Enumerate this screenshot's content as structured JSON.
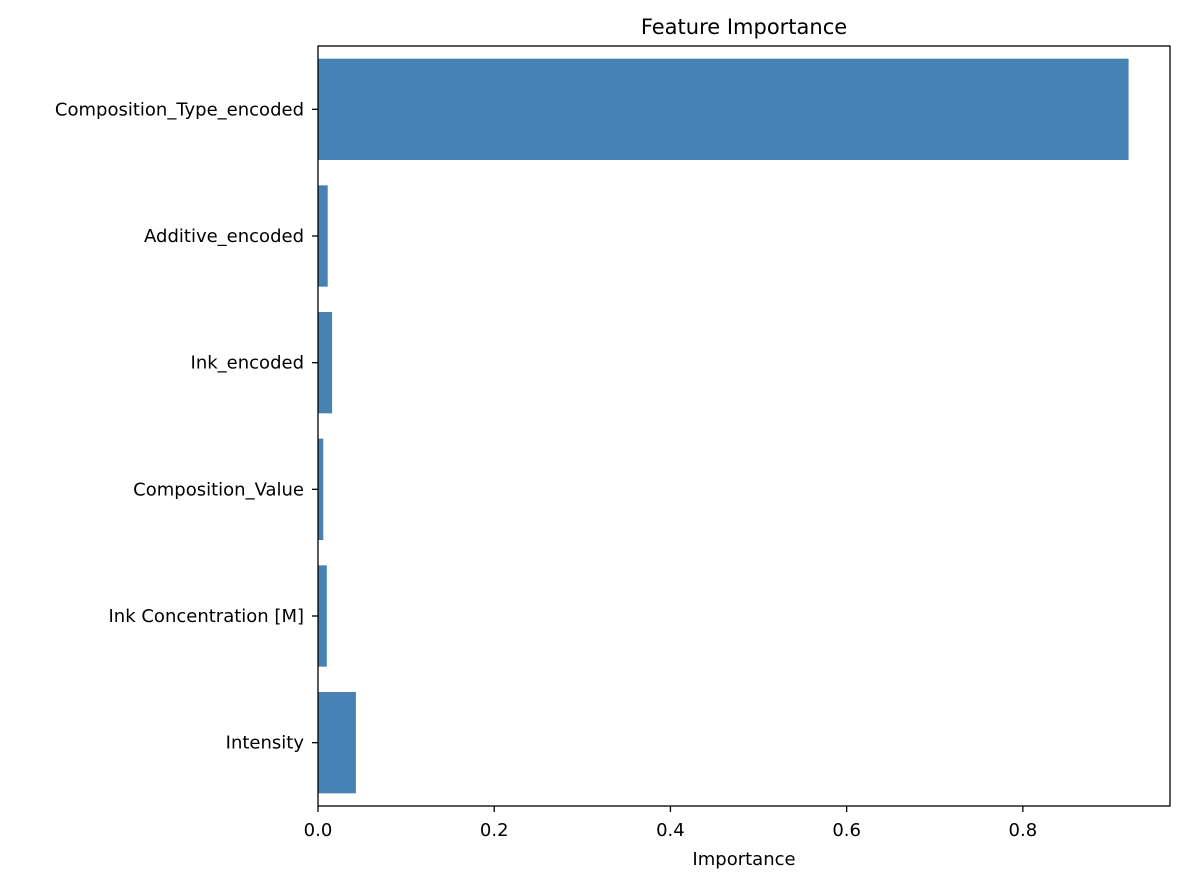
{
  "chart_data": {
    "type": "bar",
    "orientation": "horizontal",
    "title": "Feature Importance",
    "xlabel": "Importance",
    "ylabel": "",
    "categories": [
      "Composition_Type_encoded",
      "Additive_encoded",
      "Ink_encoded",
      "Composition_Value",
      "Ink Concentration [M]",
      "Intensity"
    ],
    "values": [
      0.92,
      0.011,
      0.016,
      0.006,
      0.01,
      0.043
    ],
    "xlim": [
      0,
      0.967
    ],
    "xticks": [
      0.0,
      0.2,
      0.4,
      0.6,
      0.8
    ],
    "xtick_labels": [
      "0.0",
      "0.2",
      "0.4",
      "0.6",
      "0.8"
    ],
    "grid": false,
    "bar_color": "#4682b4"
  }
}
